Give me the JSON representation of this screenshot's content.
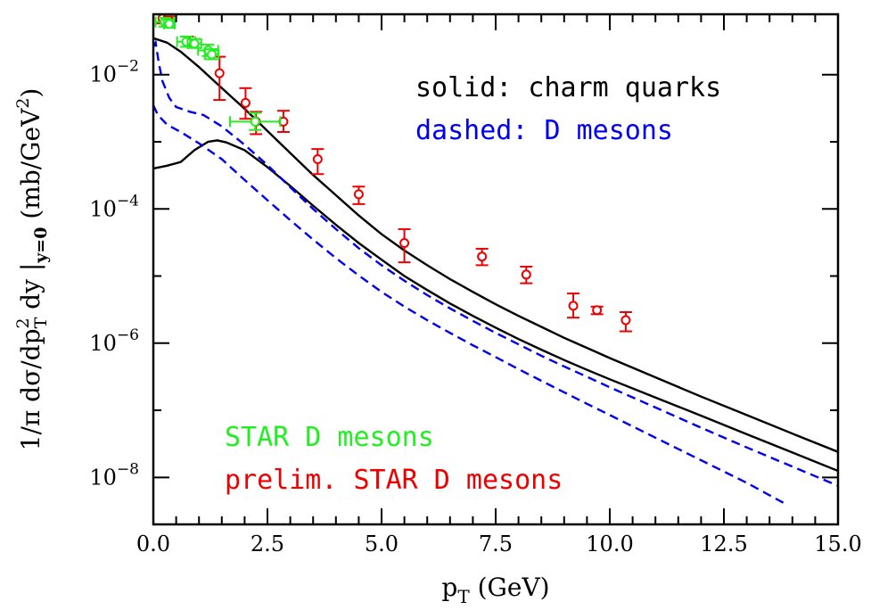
{
  "chart_data": {
    "type": "scatter",
    "title": "",
    "xlabel": {
      "main": "p",
      "sub": "T",
      "rest": " (GeV)"
    },
    "ylabel": {
      "p1": "1/π dσ/dp",
      "sup": "2",
      "sub_t": "T",
      "p2": " dy |",
      "sub_y": "y=0",
      "p3": " (mb/GeV",
      "sup2": "2",
      "p4": ")"
    },
    "xlim": [
      0,
      15
    ],
    "ylim_log10": [
      -8.7,
      -1.1
    ],
    "log_y": true,
    "x_ticks": [
      "0.0",
      "2.5",
      "5.0",
      "7.5",
      "10.0",
      "12.5",
      "15.0"
    ],
    "y_ticks": [
      {
        "base": "10",
        "exp": "−2",
        "log": -2
      },
      {
        "base": "10",
        "exp": "−4",
        "log": -4
      },
      {
        "base": "10",
        "exp": "−6",
        "log": -6
      },
      {
        "base": "10",
        "exp": "−8",
        "log": -8
      }
    ],
    "legend": {
      "solid": "solid: charm quarks",
      "dashed": "dashed: D mesons",
      "star": "STAR D mesons",
      "prelim": "prelim. STAR D mesons"
    },
    "colors": {
      "solid": "#000000",
      "dashed": "#0000ee",
      "star": "#22ee22",
      "prelim": "#ee0000"
    },
    "series": [
      {
        "style": "solid",
        "points": [
          [
            0,
            0.035
          ],
          [
            0.3,
            0.03
          ],
          [
            0.6,
            0.022
          ],
          [
            1.0,
            0.013
          ],
          [
            1.5,
            0.0063
          ],
          [
            2,
            0.0031
          ],
          [
            2.5,
            0.00145
          ],
          [
            3,
            0.00068
          ],
          [
            3.5,
            0.00032
          ],
          [
            4,
            0.00016
          ],
          [
            4.5,
            8e-05
          ],
          [
            5,
            4.2e-05
          ],
          [
            5.5,
            2.4e-05
          ],
          [
            6,
            1.45e-05
          ],
          [
            6.5,
            9e-06
          ],
          [
            7,
            5.8e-06
          ],
          [
            7.5,
            3.8e-06
          ],
          [
            8,
            2.55e-06
          ],
          [
            8.5,
            1.75e-06
          ],
          [
            9,
            1.2e-06
          ],
          [
            9.5,
            8.5e-07
          ],
          [
            10,
            6e-07
          ],
          [
            11,
            3.1e-07
          ],
          [
            12,
            1.6e-07
          ],
          [
            13,
            8.5e-08
          ],
          [
            14,
            4.5e-08
          ],
          [
            15,
            2.4e-08
          ]
        ]
      },
      {
        "style": "solid",
        "points": [
          [
            0,
            0.0004
          ],
          [
            0.3,
            0.00044
          ],
          [
            0.6,
            0.0005
          ],
          [
            0.9,
            0.00075
          ],
          [
            1.2,
            0.001
          ],
          [
            1.4,
            0.00105
          ],
          [
            1.6,
            0.00098
          ],
          [
            2,
            0.00075
          ],
          [
            2.5,
            0.00042
          ],
          [
            3,
            0.00022
          ],
          [
            3.5,
            0.000112
          ],
          [
            4,
            5.8e-05
          ],
          [
            4.5,
            3.1e-05
          ],
          [
            5,
            1.75e-05
          ],
          [
            5.5,
            1e-05
          ],
          [
            6,
            6.2e-06
          ],
          [
            6.5,
            3.9e-06
          ],
          [
            7,
            2.55e-06
          ],
          [
            7.5,
            1.7e-06
          ],
          [
            8,
            1.15e-06
          ],
          [
            8.5,
            8e-07
          ],
          [
            9,
            5.6e-07
          ],
          [
            9.5,
            4e-07
          ],
          [
            10,
            2.9e-07
          ],
          [
            11,
            1.55e-07
          ],
          [
            12,
            8.3e-08
          ],
          [
            13,
            4.4e-08
          ],
          [
            14,
            2.35e-08
          ],
          [
            15,
            1.25e-08
          ]
        ]
      },
      {
        "style": "dashed",
        "points": [
          [
            0,
            0.026
          ],
          [
            0.05,
            0.03
          ],
          [
            0.12,
            0.015
          ],
          [
            0.2,
            0.008
          ],
          [
            0.35,
            0.0045
          ],
          [
            0.5,
            0.0033
          ],
          [
            0.8,
            0.0028
          ],
          [
            1.1,
            0.0025
          ],
          [
            1.5,
            0.0017
          ],
          [
            2,
            0.0009
          ],
          [
            2.5,
            0.00045
          ],
          [
            3,
            0.00021
          ],
          [
            3.5,
            0.0001
          ],
          [
            4,
            5e-05
          ],
          [
            4.5,
            2.6e-05
          ],
          [
            5,
            1.45e-05
          ],
          [
            5.5,
            8.5e-06
          ],
          [
            6,
            5.2e-06
          ],
          [
            6.5,
            3.3e-06
          ],
          [
            7,
            2.15e-06
          ],
          [
            7.5,
            1.42e-06
          ],
          [
            8,
            9.6e-07
          ],
          [
            8.5,
            6.5e-07
          ],
          [
            9,
            4.5e-07
          ],
          [
            9.5,
            3.15e-07
          ],
          [
            10,
            2.2e-07
          ],
          [
            11,
            1.1e-07
          ],
          [
            12,
            5.5e-08
          ],
          [
            13,
            2.8e-08
          ],
          [
            14,
            1.45e-08
          ],
          [
            15,
            7.5e-09
          ]
        ]
      },
      {
        "style": "dashed",
        "points": [
          [
            0,
            0.0035
          ],
          [
            0.1,
            0.0025
          ],
          [
            0.3,
            0.0018
          ],
          [
            0.6,
            0.0014
          ],
          [
            1,
            0.00095
          ],
          [
            1.5,
            0.00055
          ],
          [
            2,
            0.00027
          ],
          [
            2.5,
            0.000135
          ],
          [
            3,
            6.8e-05
          ],
          [
            3.5,
            3.5e-05
          ],
          [
            4,
            1.85e-05
          ],
          [
            4.5,
            1.02e-05
          ],
          [
            5,
            5.8e-06
          ],
          [
            5.5,
            3.5e-06
          ],
          [
            6,
            2.2e-06
          ],
          [
            6.5,
            1.42e-06
          ],
          [
            7,
            9.3e-07
          ],
          [
            7.5,
            6.2e-07
          ],
          [
            8,
            4.1e-07
          ],
          [
            8.5,
            2.75e-07
          ],
          [
            9,
            1.85e-07
          ],
          [
            9.5,
            1.25e-07
          ],
          [
            10,
            8.5e-08
          ],
          [
            11,
            3.9e-08
          ],
          [
            12,
            1.8e-08
          ],
          [
            13,
            8.3e-09
          ],
          [
            13.8,
            4.2e-09
          ]
        ]
      }
    ],
    "star_points": [
      {
        "x": 0.25,
        "y": 0.061,
        "xerr": 0.2,
        "ylo": 0.052,
        "yhi": 0.07
      },
      {
        "x": 0.35,
        "y": 0.057,
        "xerr": 0.12,
        "ylo": 0.05,
        "yhi": 0.066
      },
      {
        "x": 0.72,
        "y": 0.031,
        "xerr": 0.2,
        "ylo": 0.026,
        "yhi": 0.037
      },
      {
        "x": 0.9,
        "y": 0.029,
        "xerr": 0.15,
        "ylo": 0.025,
        "yhi": 0.034
      },
      {
        "x": 1.2,
        "y": 0.023,
        "xerr": 0.22,
        "ylo": 0.019,
        "yhi": 0.028
      },
      {
        "x": 1.28,
        "y": 0.02,
        "xerr": 0.15,
        "ylo": 0.017,
        "yhi": 0.024
      },
      {
        "x": 2.23,
        "y": 0.002,
        "xerr": 0.55,
        "ylo": 0.0015,
        "yhi": 0.0027
      }
    ],
    "prelim_points": [
      {
        "x": 0.2,
        "y": 0.069,
        "ylo": 0.058,
        "yhi": 0.085
      },
      {
        "x": 0.35,
        "y": 0.063,
        "ylo": 0.055,
        "yhi": 0.074
      },
      {
        "x": 0.75,
        "y": 0.031,
        "ylo": 0.026,
        "yhi": 0.037
      },
      {
        "x": 1.45,
        "y": 0.0105,
        "ylo": 0.0042,
        "yhi": 0.0185
      },
      {
        "x": 2.02,
        "y": 0.0038,
        "ylo": 0.0022,
        "yhi": 0.0063
      },
      {
        "x": 2.25,
        "y": 0.002,
        "ylo": 0.0013,
        "yhi": 0.0028
      },
      {
        "x": 2.85,
        "y": 0.002,
        "ylo": 0.0014,
        "yhi": 0.0029
      },
      {
        "x": 3.6,
        "y": 0.00055,
        "ylo": 0.00033,
        "yhi": 0.00078
      },
      {
        "x": 4.5,
        "y": 0.000165,
        "ylo": 0.000118,
        "yhi": 0.000215
      },
      {
        "x": 5.5,
        "y": 3.1e-05,
        "ylo": 1.6e-05,
        "yhi": 5e-05
      },
      {
        "x": 7.2,
        "y": 1.95e-05,
        "ylo": 1.45e-05,
        "yhi": 2.55e-05
      },
      {
        "x": 8.17,
        "y": 1.05e-05,
        "ylo": 7.8e-06,
        "yhi": 1.38e-05
      },
      {
        "x": 9.2,
        "y": 3.6e-06,
        "ylo": 2.4e-06,
        "yhi": 5.5e-06
      },
      {
        "x": 9.72,
        "y": 3.1e-06,
        "ylo": 2.7e-06,
        "yhi": 3.5e-06
      },
      {
        "x": 10.35,
        "y": 2.2e-06,
        "ylo": 1.5e-06,
        "yhi": 2.9e-06
      }
    ]
  }
}
